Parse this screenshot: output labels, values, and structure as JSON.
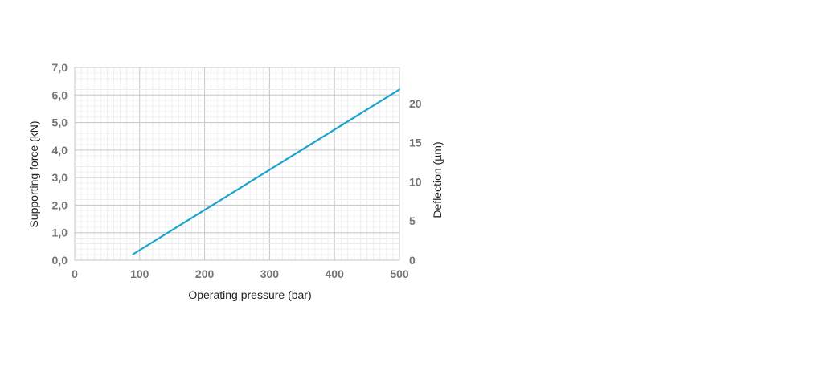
{
  "chart_data": {
    "type": "line",
    "xlabel": "Operating pressure  (bar)",
    "ylabel": "Supporting force  (kN)",
    "y2label": "Deflection  (µm)",
    "xlim": [
      0,
      500
    ],
    "ylim": [
      0,
      7
    ],
    "y2lim": [
      0,
      24.6
    ],
    "x_ticks": [
      "0",
      "100",
      "200",
      "300",
      "400",
      "500"
    ],
    "y_ticks": [
      "0,0",
      "1,0",
      "2,0",
      "3,0",
      "4,0",
      "5,0",
      "6,0",
      "7,0"
    ],
    "y2_ticks": [
      "0",
      "5",
      "10",
      "15",
      "20"
    ],
    "grid": true,
    "series": [
      {
        "color": "#19a3cf",
        "x": [
          90,
          500
        ],
        "y": [
          0.22,
          6.2
        ]
      }
    ]
  }
}
